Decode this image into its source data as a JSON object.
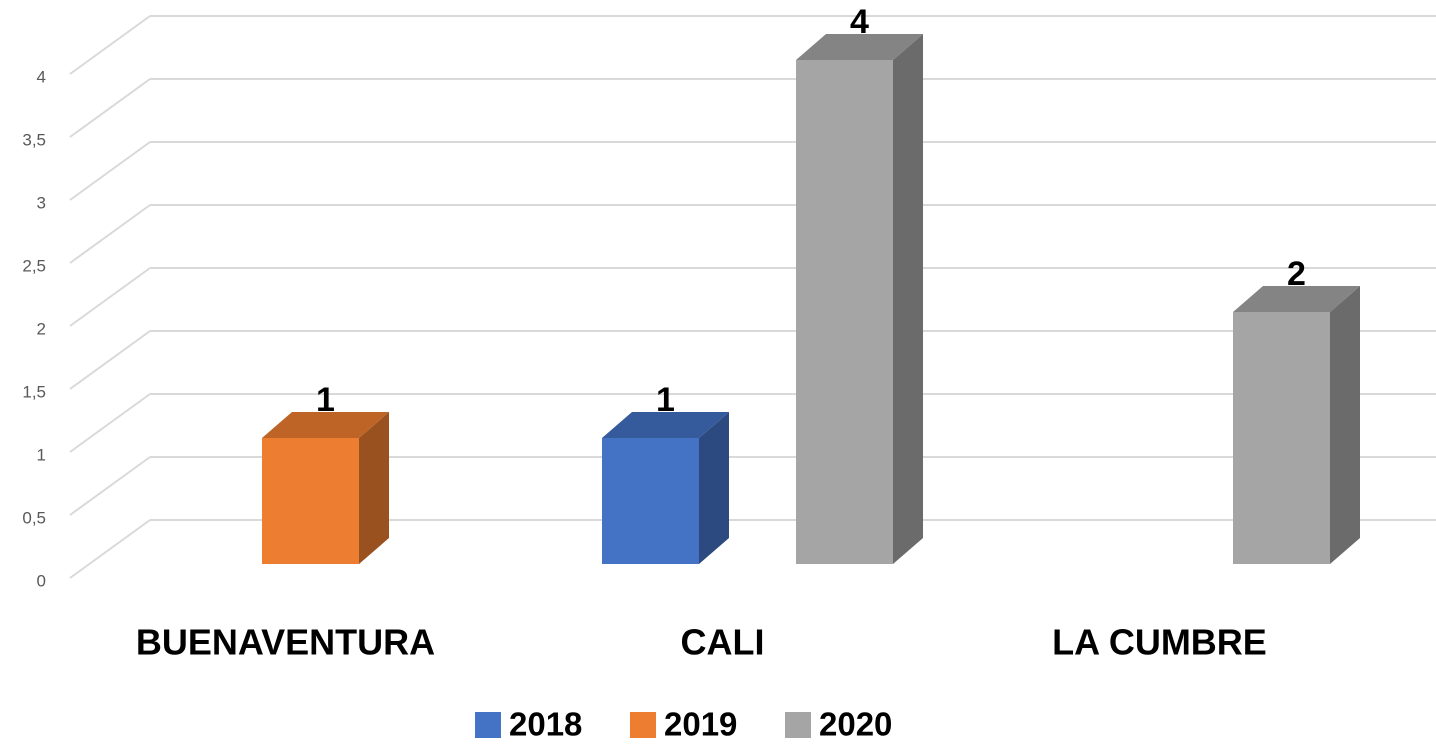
{
  "chart_data": {
    "type": "bar3d",
    "categories": [
      "BUENAVENTURA",
      "CALI",
      "LA CUMBRE"
    ],
    "series": [
      {
        "name": "2018",
        "color": "#4472c4",
        "values": [
          null,
          1,
          null
        ]
      },
      {
        "name": "2019",
        "color": "#ed7d31",
        "values": [
          1,
          null,
          null
        ]
      },
      {
        "name": "2020",
        "color": "#a5a5a5",
        "values": [
          null,
          4,
          2
        ]
      }
    ],
    "ylim": [
      0,
      4
    ],
    "yticks": [
      0,
      {
        "value": 0.5,
        "label": "0,5"
      },
      1,
      {
        "value": 1.5,
        "label": "1,5"
      },
      2,
      {
        "value": 2.5,
        "label": "2,5"
      },
      3,
      {
        "value": 3.5,
        "label": "3,5"
      },
      4
    ],
    "grid": true,
    "data_labels": true,
    "legend": "bottom"
  }
}
